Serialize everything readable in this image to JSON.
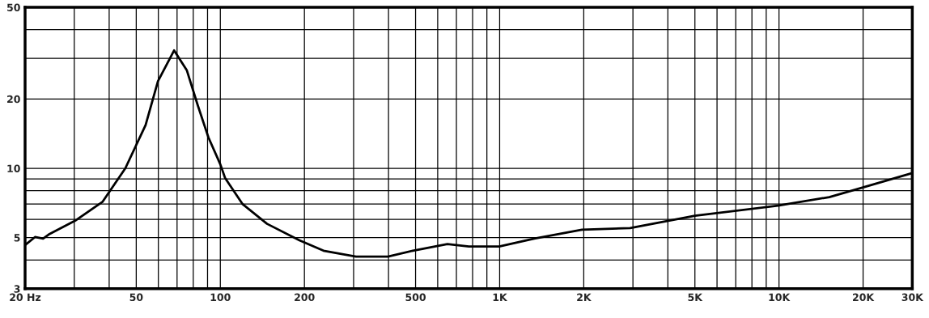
{
  "chart_data": {
    "type": "line",
    "log": "xy",
    "grid": true,
    "legend": false,
    "x": [
      20,
      21.7,
      23.2,
      24.3,
      30.2,
      37.9,
      45.7,
      54,
      59.8,
      68.3,
      75.9,
      83,
      90.7,
      100,
      104,
      120,
      147,
      192,
      234,
      306,
      398,
      489,
      650,
      776,
      996,
      1330,
      1970,
      2930,
      5000,
      9920,
      15140,
      19980,
      30000
    ],
    "series": [
      {
        "color": "#000000",
        "values": [
          4.64,
          5.03,
          4.95,
          5.16,
          5.92,
          7.16,
          10,
          15.4,
          23.9,
          32.5,
          26.6,
          18.8,
          13.6,
          10.4,
          9.07,
          7.0,
          5.74,
          4.87,
          4.39,
          4.14,
          4.14,
          4.39,
          4.69,
          4.58,
          4.58,
          4.95,
          5.41,
          5.5,
          6.22,
          6.88,
          7.5,
          8.26,
          9.53
        ]
      }
    ],
    "xlim": [
      20,
      30000
    ],
    "ylim": [
      3,
      50
    ],
    "xticks": [
      {
        "value": 20,
        "label": "20 Hz"
      },
      {
        "value": 30,
        "label": null
      },
      {
        "value": 40,
        "label": null
      },
      50,
      {
        "value": 60,
        "label": null
      },
      {
        "value": 70,
        "label": null
      },
      {
        "value": 80,
        "label": null
      },
      {
        "value": 90,
        "label": null
      },
      100,
      200,
      {
        "value": 300,
        "label": null
      },
      {
        "value": 400,
        "label": null
      },
      500,
      {
        "value": 600,
        "label": null
      },
      {
        "value": 700,
        "label": null
      },
      {
        "value": 800,
        "label": null
      },
      {
        "value": 900,
        "label": null
      },
      {
        "value": 1000,
        "label": "1K"
      },
      {
        "value": 2000,
        "label": "2K"
      },
      {
        "value": 3000,
        "label": null
      },
      {
        "value": 4000,
        "label": null
      },
      {
        "value": 5000,
        "label": "5K"
      },
      {
        "value": 6000,
        "label": null
      },
      {
        "value": 7000,
        "label": null
      },
      {
        "value": 8000,
        "label": null
      },
      {
        "value": 9000,
        "label": null
      },
      {
        "value": 10000,
        "label": "10K"
      },
      {
        "value": 20000,
        "label": "20K"
      },
      {
        "value": 30000,
        "label": "30K"
      }
    ],
    "yticks": [
      3,
      {
        "value": 4,
        "label": null
      },
      5,
      {
        "value": 6,
        "label": null
      },
      {
        "value": 7,
        "label": null
      },
      {
        "value": 8,
        "label": null
      },
      {
        "value": 9,
        "label": null
      },
      10,
      20,
      {
        "value": 30,
        "label": null
      },
      {
        "value": 40,
        "label": null
      },
      50
    ]
  }
}
